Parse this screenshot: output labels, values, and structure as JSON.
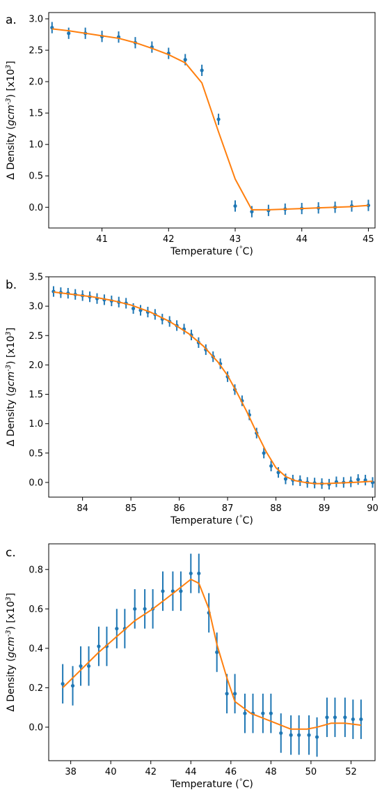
{
  "chart_data": [
    {
      "type": "scatter",
      "panel_label": "a.",
      "xlabel": "Temperature ($^\\circ$C)",
      "ylabel": "Δ Density ($gcm^{-3}$) [x10$^3$]",
      "xlim": [
        40.2,
        45.1
      ],
      "ylim": [
        -0.33,
        3.1
      ],
      "xticks": [
        41,
        42,
        43,
        44,
        45
      ],
      "xtick_labels": [
        "41",
        "42",
        "43",
        "44",
        "45"
      ],
      "yticks": [
        0.0,
        0.5,
        1.0,
        1.5,
        2.0,
        2.5,
        3.0
      ],
      "ytick_labels": [
        "0.0",
        "0.5",
        "1.0",
        "1.5",
        "2.0",
        "2.5",
        "3.0"
      ],
      "grid": false,
      "series": [
        {
          "kind": "errorbar",
          "color": "#1f77b4",
          "x": [
            40.25,
            40.5,
            40.75,
            41.0,
            41.25,
            41.5,
            41.75,
            42.0,
            42.25,
            42.5,
            42.75,
            43.0,
            43.25,
            43.5,
            43.75,
            44.0,
            44.25,
            44.5,
            44.75,
            45.0
          ],
          "y": [
            2.86,
            2.77,
            2.77,
            2.72,
            2.71,
            2.62,
            2.55,
            2.45,
            2.35,
            2.18,
            1.4,
            0.02,
            -0.07,
            -0.05,
            -0.03,
            -0.02,
            -0.01,
            0.0,
            0.02,
            0.03
          ],
          "err": [
            0.09,
            0.09,
            0.09,
            0.09,
            0.09,
            0.09,
            0.09,
            0.09,
            0.09,
            0.09,
            0.09,
            0.09,
            0.09,
            0.09,
            0.09,
            0.09,
            0.09,
            0.09,
            0.09,
            0.09
          ]
        },
        {
          "kind": "line",
          "color": "#ff7f0e",
          "x": [
            40.25,
            40.5,
            40.75,
            41.0,
            41.25,
            41.5,
            41.75,
            42.0,
            42.25,
            42.5,
            42.75,
            43.0,
            43.25,
            43.5,
            43.75,
            44.0,
            44.25,
            44.5,
            44.75,
            45.0
          ],
          "y": [
            2.84,
            2.81,
            2.77,
            2.73,
            2.69,
            2.62,
            2.53,
            2.43,
            2.3,
            1.98,
            1.2,
            0.45,
            -0.04,
            -0.04,
            -0.03,
            -0.02,
            -0.01,
            0.0,
            0.01,
            0.03
          ]
        }
      ]
    },
    {
      "type": "scatter",
      "panel_label": "b.",
      "xlabel": "Temperature ($^\\circ$C)",
      "ylabel": "Δ Density ($gcm^{-3}$) [x10$^3$]",
      "xlim": [
        83.3,
        90.05
      ],
      "ylim": [
        -0.25,
        3.5
      ],
      "xticks": [
        84,
        85,
        86,
        87,
        88,
        89,
        90
      ],
      "xtick_labels": [
        "84",
        "85",
        "86",
        "87",
        "88",
        "89",
        "90"
      ],
      "yticks": [
        0.0,
        0.5,
        1.0,
        1.5,
        2.0,
        2.5,
        3.0,
        3.5
      ],
      "ytick_labels": [
        "0.0",
        "0.5",
        "1.0",
        "1.5",
        "2.0",
        "2.5",
        "3.0",
        "3.5"
      ],
      "grid": false,
      "series": [
        {
          "kind": "errorbar",
          "color": "#1f77b4",
          "x": [
            83.4,
            83.55,
            83.7,
            83.85,
            84.0,
            84.15,
            84.3,
            84.45,
            84.6,
            84.75,
            84.9,
            85.05,
            85.2,
            85.35,
            85.5,
            85.65,
            85.8,
            85.95,
            86.1,
            86.25,
            86.4,
            86.55,
            86.7,
            86.85,
            87.0,
            87.15,
            87.3,
            87.45,
            87.6,
            87.75,
            87.9,
            88.05,
            88.2,
            88.35,
            88.5,
            88.65,
            88.8,
            88.95,
            89.1,
            89.25,
            89.4,
            89.55,
            89.7,
            89.85,
            90.0
          ],
          "y": [
            3.25,
            3.23,
            3.22,
            3.2,
            3.18,
            3.16,
            3.13,
            3.11,
            3.09,
            3.07,
            3.05,
            2.96,
            2.93,
            2.9,
            2.86,
            2.78,
            2.74,
            2.67,
            2.61,
            2.51,
            2.38,
            2.26,
            2.14,
            2.02,
            1.8,
            1.58,
            1.39,
            1.15,
            0.84,
            0.5,
            0.28,
            0.17,
            0.06,
            0.04,
            0.03,
            0.0,
            -0.01,
            -0.02,
            -0.03,
            0.01,
            0.0,
            0.01,
            0.05,
            0.04,
            0.0
          ],
          "err": [
            0.09,
            0.09,
            0.09,
            0.09,
            0.09,
            0.09,
            0.09,
            0.09,
            0.09,
            0.09,
            0.09,
            0.09,
            0.09,
            0.09,
            0.09,
            0.09,
            0.09,
            0.09,
            0.09,
            0.09,
            0.09,
            0.09,
            0.09,
            0.09,
            0.09,
            0.09,
            0.09,
            0.09,
            0.09,
            0.09,
            0.09,
            0.09,
            0.09,
            0.09,
            0.09,
            0.09,
            0.09,
            0.09,
            0.09,
            0.09,
            0.09,
            0.09,
            0.09,
            0.09,
            0.09
          ]
        },
        {
          "kind": "line",
          "color": "#ff7f0e",
          "x": [
            83.4,
            83.8,
            84.2,
            84.6,
            85.0,
            85.4,
            85.8,
            86.2,
            86.5,
            86.8,
            87.0,
            87.2,
            87.4,
            87.6,
            87.8,
            88.0,
            88.2,
            88.4,
            88.6,
            88.8,
            89.0,
            89.3,
            89.6,
            89.8,
            90.0
          ],
          "y": [
            3.24,
            3.2,
            3.16,
            3.1,
            3.02,
            2.9,
            2.74,
            2.53,
            2.32,
            2.05,
            1.82,
            1.52,
            1.2,
            0.85,
            0.52,
            0.25,
            0.1,
            0.03,
            0.0,
            -0.02,
            -0.02,
            -0.01,
            0.0,
            0.01,
            0.02
          ]
        }
      ]
    },
    {
      "type": "scatter",
      "panel_label": "c.",
      "xlabel": "Temperature ($^\\circ$C)",
      "ylabel": "Δ Density ($gcm^{-3}$) [x10$^3$]",
      "xlim": [
        36.9,
        53.2
      ],
      "ylim": [
        -0.17,
        0.93
      ],
      "xticks": [
        38,
        40,
        42,
        44,
        46,
        48,
        50,
        52
      ],
      "xtick_labels": [
        "38",
        "40",
        "42",
        "44",
        "46",
        "48",
        "50",
        "52"
      ],
      "yticks": [
        0.0,
        0.2,
        0.4,
        0.6,
        0.8
      ],
      "ytick_labels": [
        "0.0",
        "0.2",
        "0.4",
        "0.6",
        "0.8"
      ],
      "grid": false,
      "series": [
        {
          "kind": "errorbar",
          "color": "#1f77b4",
          "x": [
            37.6,
            38.1,
            38.5,
            38.9,
            39.4,
            39.8,
            40.3,
            40.7,
            41.2,
            41.7,
            42.1,
            42.6,
            43.1,
            43.5,
            44.0,
            44.4,
            44.9,
            45.3,
            45.8,
            46.2,
            46.7,
            47.1,
            47.6,
            48.0,
            48.5,
            49.0,
            49.4,
            49.9,
            50.3,
            50.8,
            51.2,
            51.7,
            52.1,
            52.5
          ],
          "y": [
            0.22,
            0.21,
            0.31,
            0.31,
            0.41,
            0.41,
            0.5,
            0.5,
            0.6,
            0.6,
            0.6,
            0.69,
            0.69,
            0.69,
            0.78,
            0.78,
            0.58,
            0.38,
            0.17,
            0.17,
            0.07,
            0.07,
            0.07,
            0.07,
            -0.03,
            -0.04,
            -0.04,
            -0.04,
            -0.05,
            0.05,
            0.05,
            0.05,
            0.04,
            0.04
          ],
          "err": [
            0.1,
            0.1,
            0.1,
            0.1,
            0.1,
            0.1,
            0.1,
            0.1,
            0.1,
            0.1,
            0.1,
            0.1,
            0.1,
            0.1,
            0.1,
            0.1,
            0.1,
            0.1,
            0.1,
            0.1,
            0.1,
            0.1,
            0.1,
            0.1,
            0.1,
            0.1,
            0.1,
            0.1,
            0.1,
            0.1,
            0.1,
            0.1,
            0.1,
            0.1
          ]
        },
        {
          "kind": "line",
          "color": "#ff7f0e",
          "x": [
            37.6,
            38.5,
            39.4,
            40.3,
            41.2,
            42.1,
            43.0,
            44.0,
            44.4,
            44.9,
            45.3,
            45.8,
            46.2,
            47.0,
            48.0,
            49.0,
            49.8,
            50.3,
            51.0,
            51.7,
            52.5
          ],
          "y": [
            0.2,
            0.29,
            0.38,
            0.46,
            0.54,
            0.6,
            0.67,
            0.75,
            0.73,
            0.6,
            0.42,
            0.25,
            0.13,
            0.07,
            0.03,
            -0.01,
            -0.01,
            0.0,
            0.02,
            0.02,
            0.01
          ]
        }
      ]
    }
  ]
}
